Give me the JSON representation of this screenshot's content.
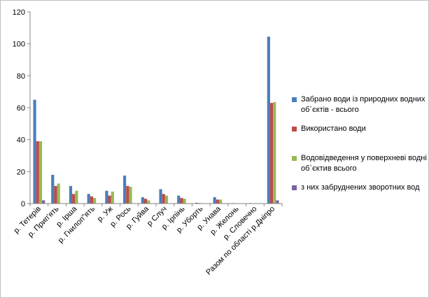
{
  "chart_data": {
    "type": "bar",
    "categories": [
      "р. Тетерів",
      "р. Прип'ять",
      "р. Ірша",
      "р. Гнилоп\"ять",
      "р. Уж",
      "р. Рось",
      "р. Гуйва",
      "р Случ",
      "р. Ірпінь",
      "р. Уборть",
      "р. Унава",
      "р. Желонь",
      "р. Словечно",
      "Разом по області р.Дніпро"
    ],
    "series": [
      {
        "name": "Забрано води із природних водних об`єктів - всього",
        "color": "#4a7ebb",
        "values": [
          65,
          18,
          11,
          6,
          8,
          17.5,
          4,
          9,
          5,
          0.5,
          4,
          0.3,
          0.3,
          104.5
        ]
      },
      {
        "name": "Використано води",
        "color": "#be4b48",
        "values": [
          39,
          11,
          6,
          4.5,
          5,
          11,
          3,
          6,
          3.5,
          0.3,
          2.5,
          0.2,
          0.2,
          63
        ]
      },
      {
        "name": "Водовідведення у поверхневі водні об`єктив всього",
        "color": "#98b954",
        "values": [
          39,
          12.5,
          8,
          3.5,
          7.5,
          10.5,
          2,
          5,
          3,
          0.2,
          2.5,
          0.2,
          0.2,
          63.5
        ]
      },
      {
        "name": "з них забруднених зворотних вод",
        "color": "#7d60a0",
        "values": [
          2,
          0,
          0,
          0,
          0,
          0,
          0,
          0,
          0,
          0,
          0,
          0,
          0,
          2
        ]
      }
    ],
    "ylim": [
      0,
      120
    ],
    "yticks": [
      0,
      20,
      40,
      60,
      80,
      100,
      120
    ],
    "grid": false,
    "legend": "right"
  }
}
